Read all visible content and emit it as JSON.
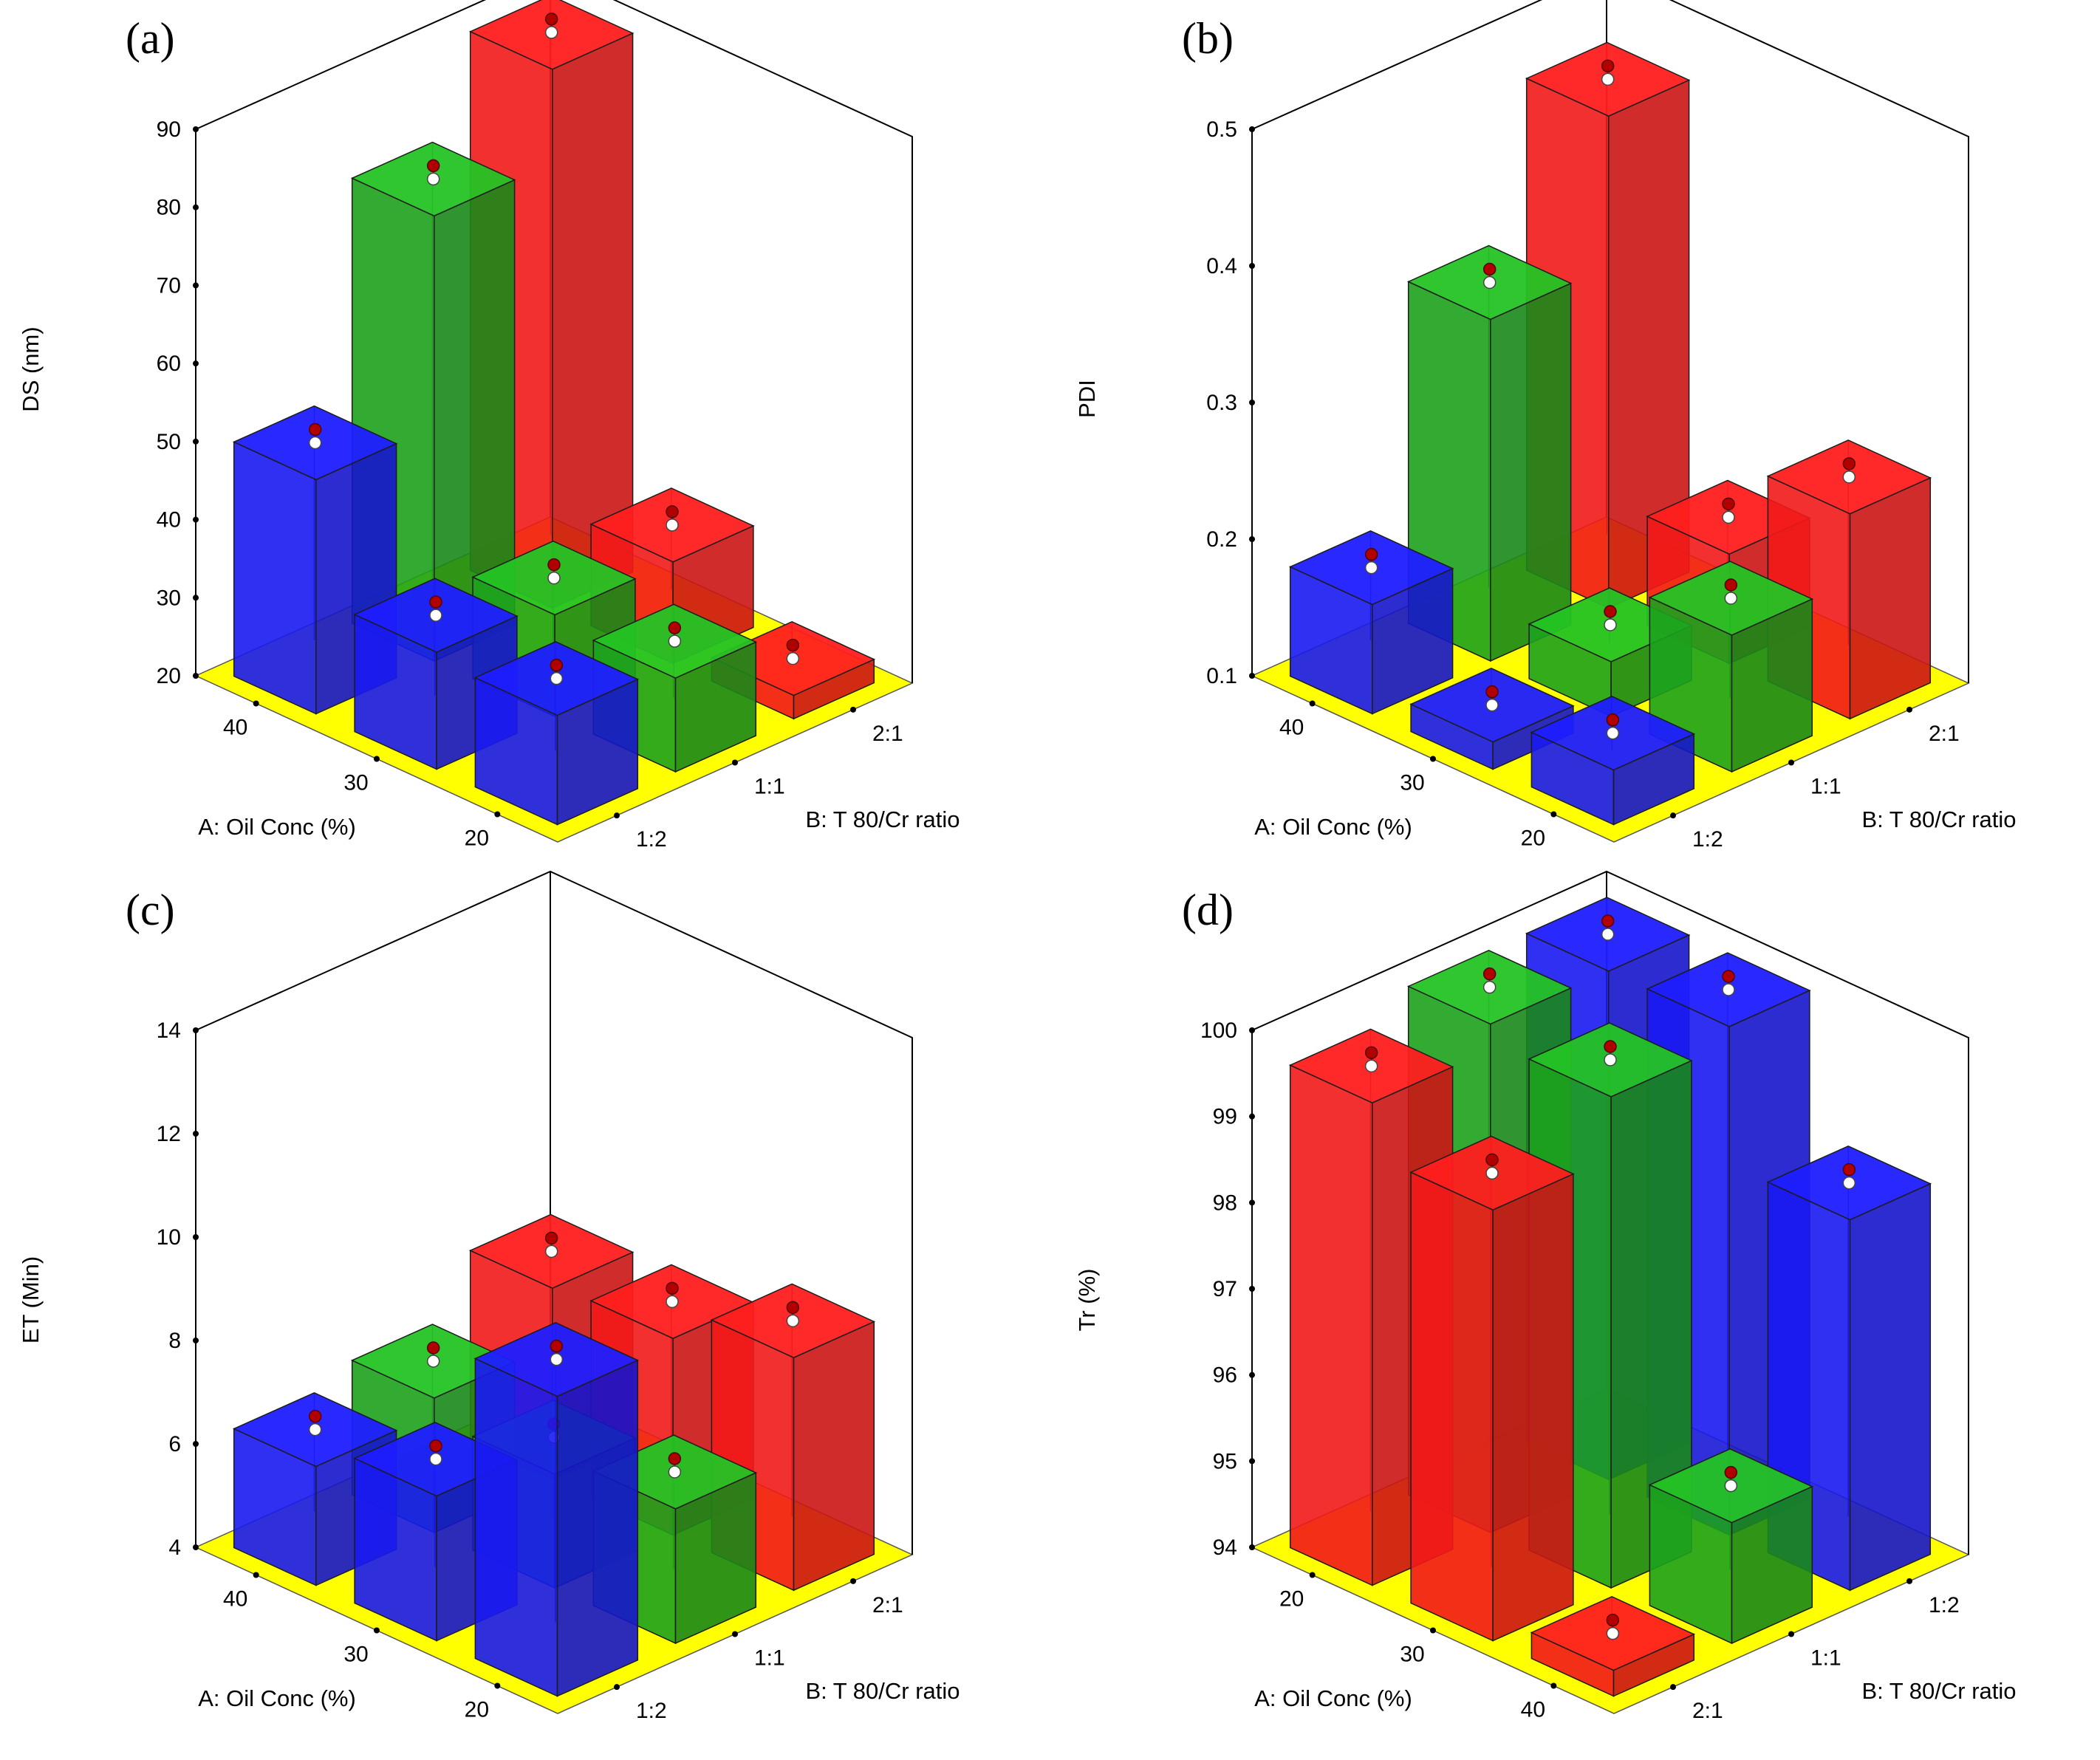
{
  "chart_data": [
    {
      "panel": "(a)",
      "type": "bar3d",
      "title": "",
      "zlabel": "DS (nm)",
      "zlim": [
        20,
        90
      ],
      "zticks": [
        "20",
        "30",
        "40",
        "50",
        "60",
        "70",
        "80",
        "90"
      ],
      "a_label": "A: Oil Conc (%)",
      "b_label": "B: T 80/Cr ratio",
      "a_ticks": [
        "40",
        "30",
        "20"
      ],
      "b_ticks": [
        "1:2",
        "1:1",
        "2:1"
      ],
      "bars": [
        {
          "a": "40",
          "b": "1:2",
          "value": 50,
          "color": "#1a1aff"
        },
        {
          "a": "40",
          "b": "1:1",
          "value": 77,
          "color": "#1faa1f"
        },
        {
          "a": "40",
          "b": "2:1",
          "value": 89,
          "color": "#ff1a1a"
        },
        {
          "a": "30",
          "b": "1:2",
          "value": 35,
          "color": "#1a1aff"
        },
        {
          "a": "30",
          "b": "1:1",
          "value": 33,
          "color": "#1faa1f"
        },
        {
          "a": "30",
          "b": "2:1",
          "value": 33,
          "color": "#ff1a1a"
        },
        {
          "a": "20",
          "b": "1:2",
          "value": 34,
          "color": "#1a1aff"
        },
        {
          "a": "20",
          "b": "1:1",
          "value": 32,
          "color": "#1faa1f"
        },
        {
          "a": "20",
          "b": "2:1",
          "value": 23,
          "color": "#ff1a1a"
        }
      ]
    },
    {
      "panel": "(b)",
      "type": "bar3d",
      "title": "",
      "zlabel": "PDI",
      "zlim": [
        0.1,
        0.5
      ],
      "zticks": [
        "0.1",
        "0.2",
        "0.3",
        "0.4",
        "0.5"
      ],
      "a_label": "A: Oil Conc (%)",
      "b_label": "B: T 80/Cr ratio",
      "a_ticks": [
        "40",
        "30",
        "20"
      ],
      "b_ticks": [
        "1:2",
        "1:1",
        "2:1"
      ],
      "bars": [
        {
          "a": "40",
          "b": "1:2",
          "value": 0.18,
          "color": "#1a1aff"
        },
        {
          "a": "40",
          "b": "1:1",
          "value": 0.35,
          "color": "#1faa1f"
        },
        {
          "a": "40",
          "b": "2:1",
          "value": 0.46,
          "color": "#ff1a1a"
        },
        {
          "a": "30",
          "b": "1:2",
          "value": 0.12,
          "color": "#1a1aff"
        },
        {
          "a": "30",
          "b": "1:1",
          "value": 0.14,
          "color": "#1faa1f"
        },
        {
          "a": "30",
          "b": "2:1",
          "value": 0.18,
          "color": "#ff1a1a"
        },
        {
          "a": "20",
          "b": "1:2",
          "value": 0.14,
          "color": "#1a1aff"
        },
        {
          "a": "20",
          "b": "1:1",
          "value": 0.2,
          "color": "#1faa1f"
        },
        {
          "a": "20",
          "b": "2:1",
          "value": 0.25,
          "color": "#ff1a1a"
        }
      ]
    },
    {
      "panel": "(c)",
      "type": "bar3d",
      "title": "",
      "zlabel": "ET (Min)",
      "zlim": [
        4,
        14
      ],
      "zticks": [
        "4",
        "6",
        "8",
        "10",
        "12",
        "14"
      ],
      "a_label": "A: Oil Conc (%)",
      "b_label": "B: T 80/Cr ratio",
      "a_ticks": [
        "40",
        "30",
        "20"
      ],
      "b_ticks": [
        "1:2",
        "1:1",
        "2:1"
      ],
      "bars": [
        {
          "a": "40",
          "b": "1:2",
          "value": 6.3,
          "color": "#1a1aff"
        },
        {
          "a": "40",
          "b": "1:1",
          "value": 6.6,
          "color": "#1faa1f"
        },
        {
          "a": "40",
          "b": "2:1",
          "value": 7.7,
          "color": "#ff1a1a"
        },
        {
          "a": "30",
          "b": "1:2",
          "value": 6.8,
          "color": "#1a1aff"
        },
        {
          "a": "30",
          "b": "1:1",
          "value": 6.2,
          "color": "#1faa1f"
        },
        {
          "a": "30",
          "b": "2:1",
          "value": 7.8,
          "color": "#ff1a1a"
        },
        {
          "a": "20",
          "b": "1:2",
          "value": 9.8,
          "color": "#1a1aff"
        },
        {
          "a": "20",
          "b": "1:1",
          "value": 6.6,
          "color": "#1faa1f"
        },
        {
          "a": "20",
          "b": "2:1",
          "value": 8.5,
          "color": "#ff1a1a"
        }
      ]
    },
    {
      "panel": "(d)",
      "type": "bar3d",
      "title": "",
      "zlabel": "Tr (%)",
      "zlim": [
        94,
        100
      ],
      "zticks": [
        "94",
        "95",
        "96",
        "97",
        "98",
        "99",
        "100"
      ],
      "a_label": "A: Oil Conc (%)",
      "b_label": "B: T 80/Cr ratio",
      "a_ticks": [
        "20",
        "30",
        "40"
      ],
      "b_ticks": [
        "2:1",
        "1:1",
        "1:2"
      ],
      "bars": [
        {
          "a": "20",
          "b": "2:1",
          "value": 99.6,
          "color": "#ff1a1a"
        },
        {
          "a": "20",
          "b": "1:1",
          "value": 99.9,
          "color": "#1faa1f"
        },
        {
          "a": "20",
          "b": "1:2",
          "value": 99.9,
          "color": "#1a1aff"
        },
        {
          "a": "30",
          "b": "2:1",
          "value": 99.0,
          "color": "#ff1a1a"
        },
        {
          "a": "30",
          "b": "1:1",
          "value": 99.7,
          "color": "#1faa1f"
        },
        {
          "a": "30",
          "b": "1:2",
          "value": 99.9,
          "color": "#1a1aff"
        },
        {
          "a": "40",
          "b": "2:1",
          "value": 94.3,
          "color": "#ff1a1a"
        },
        {
          "a": "40",
          "b": "1:1",
          "value": 95.4,
          "color": "#1faa1f"
        },
        {
          "a": "40",
          "b": "1:2",
          "value": 98.3,
          "color": "#1a1aff"
        }
      ]
    }
  ]
}
